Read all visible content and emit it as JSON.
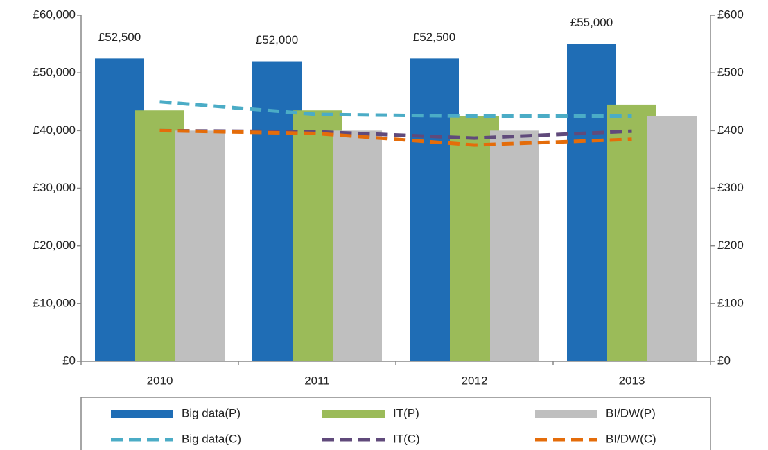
{
  "chart_data": {
    "type": "bar",
    "categories": [
      "2010",
      "2011",
      "2012",
      "2013"
    ],
    "series": [
      {
        "name": "Big data(P)",
        "type": "bar",
        "color": "#1f6db5",
        "values": [
          52500,
          52000,
          52500,
          55000
        ],
        "value_labels": [
          "£52,500",
          "£52,000",
          "£52,500",
          "£55,000"
        ]
      },
      {
        "name": "IT(P)",
        "type": "bar",
        "color": "#9bbb59",
        "values": [
          43500,
          43500,
          42500,
          44500
        ]
      },
      {
        "name": "BI/DW(P)",
        "type": "bar",
        "color": "#bfbfbf",
        "values": [
          40000,
          40000,
          40000,
          42500
        ]
      },
      {
        "name": "Big data(C)",
        "type": "line",
        "axis": "y2",
        "color": "#4bacc6",
        "values": [
          450,
          428,
          425,
          425
        ]
      },
      {
        "name": "IT(C)",
        "type": "line",
        "axis": "y2",
        "color": "#604a7b",
        "values": [
          400,
          398,
          387,
          399
        ]
      },
      {
        "name": "BI/DW(C)",
        "type": "line",
        "axis": "y2",
        "color": "#e46c0a",
        "values": [
          400,
          395,
          375,
          385
        ]
      }
    ],
    "ylim": [
      0,
      60000
    ],
    "yticks": [
      {
        "value": 0,
        "label": "£0"
      },
      {
        "value": 10000,
        "label": "£10,000"
      },
      {
        "value": 20000,
        "label": "£20,000"
      },
      {
        "value": 30000,
        "label": "£30,000"
      },
      {
        "value": 40000,
        "label": "£40,000"
      },
      {
        "value": 50000,
        "label": "£50,000"
      },
      {
        "value": 60000,
        "label": "£60,000"
      }
    ],
    "y2lim": [
      0,
      600
    ],
    "y2ticks": [
      {
        "value": 0,
        "label": "£0"
      },
      {
        "value": 100,
        "label": "£100"
      },
      {
        "value": 200,
        "label": "£200"
      },
      {
        "value": 300,
        "label": "£300"
      },
      {
        "value": 400,
        "label": "£400"
      },
      {
        "value": 500,
        "label": "£500"
      },
      {
        "value": 600,
        "label": "£600"
      }
    ],
    "legend": "bottom"
  }
}
